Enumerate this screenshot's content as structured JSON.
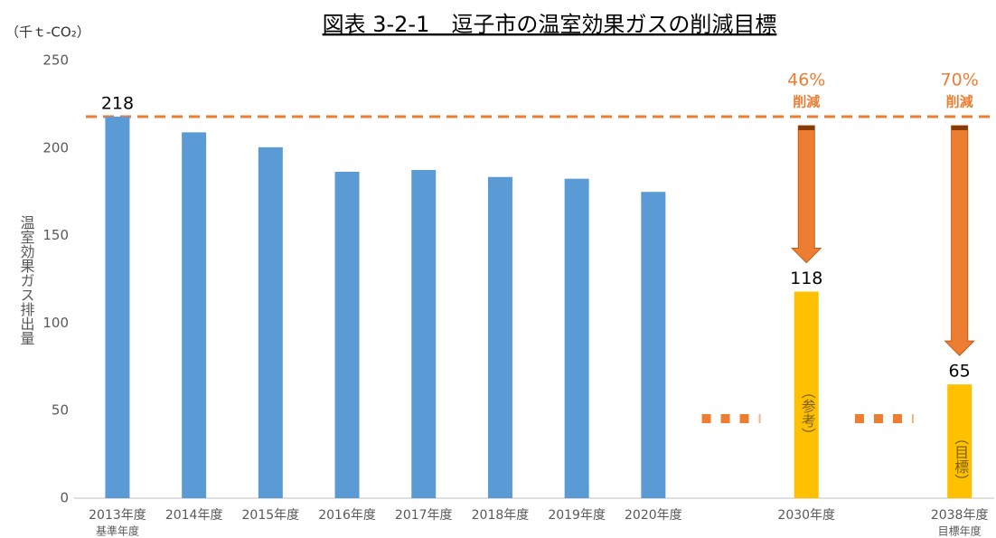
{
  "chart_data": {
    "type": "bar",
    "title": "図表 3-2-1　逗子市の温室効果ガスの削減目標",
    "unit": "（千ｔ-CO₂）",
    "y_label": "温室効果ガス排出量",
    "categories": [
      "2013年度",
      "2014年度",
      "2015年度",
      "2016年度",
      "2017年度",
      "2018年度",
      "2019年度",
      "2020年度",
      null,
      "2030年度",
      null,
      "2038年度"
    ],
    "category_notes": [
      "基準年度",
      null,
      null,
      null,
      null,
      null,
      null,
      null,
      null,
      null,
      null,
      "目標年度"
    ],
    "values": [
      218,
      209,
      200.5,
      186.5,
      187.5,
      183.5,
      182.5,
      175,
      null,
      118,
      null,
      65
    ],
    "value_labels": [
      "218",
      null,
      null,
      null,
      null,
      null,
      null,
      null,
      null,
      "118",
      null,
      "65"
    ],
    "colors": [
      "#5b9bd5",
      "#5b9bd5",
      "#5b9bd5",
      "#5b9bd5",
      "#5b9bd5",
      "#5b9bd5",
      "#5b9bd5",
      "#5b9bd5",
      null,
      "#ffc000",
      null,
      "#ffc000"
    ],
    "inner_labels": [
      null,
      null,
      null,
      null,
      null,
      null,
      null,
      null,
      null,
      "（参考）",
      null,
      "（目標）"
    ],
    "reference_line": {
      "value": 218,
      "color": "#ed7d31"
    },
    "reductions": [
      {
        "category": "2030年度",
        "percent": "46%",
        "label": "削減"
      },
      {
        "category": "2038年度",
        "percent": "70%",
        "label": "削減"
      }
    ],
    "ylim": [
      0,
      250
    ],
    "yticks": [
      0,
      50,
      100,
      150,
      200,
      250
    ],
    "grid": false
  }
}
